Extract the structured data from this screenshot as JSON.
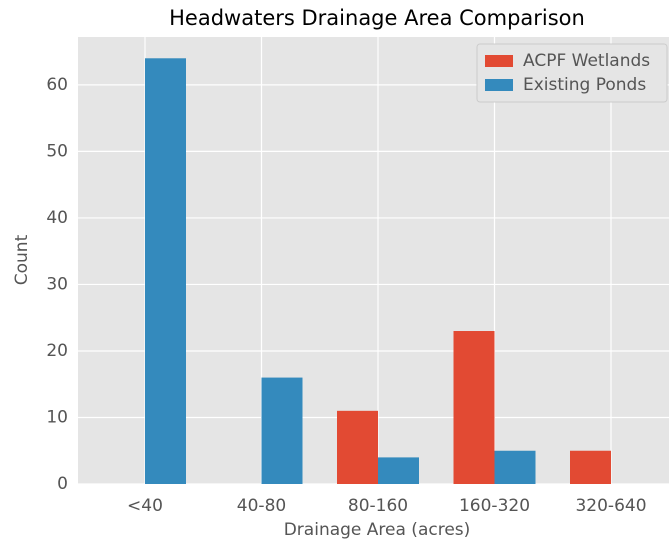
{
  "chart_data": {
    "type": "bar",
    "title": "Headwaters Drainage Area Comparison",
    "x_label": "Drainage Area (acres)",
    "y_label": "Count",
    "categories": [
      "<40",
      "40-80",
      "80-160",
      "160-320",
      "320-640"
    ],
    "series": [
      {
        "name": "ACPF Wetlands",
        "color": "#E24A33",
        "values": [
          0,
          0,
          11,
          23,
          5
        ]
      },
      {
        "name": "Existing Ponds",
        "color": "#348ABD",
        "values": [
          64,
          16,
          4,
          5,
          0
        ]
      }
    ],
    "ylim": [
      0,
      67.2
    ],
    "yticks": [
      0,
      10,
      20,
      30,
      40,
      50,
      60
    ],
    "grid": true,
    "legend": "upper right"
  }
}
